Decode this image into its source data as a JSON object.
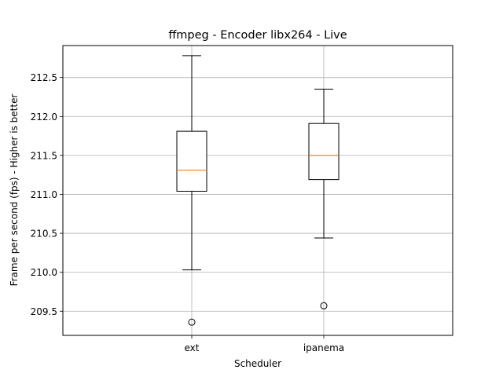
{
  "chart_data": {
    "type": "boxplot",
    "title": "ffmpeg - Encoder libx264 - Live",
    "xlabel": "Scheduler",
    "ylabel": "Frame per second (fps) - Higher is better",
    "categories": [
      "ext",
      "ipanema"
    ],
    "boxes": [
      {
        "label": "ext",
        "whislo": 210.03,
        "q1": 211.04,
        "med": 211.31,
        "q3": 211.81,
        "whishi": 212.78,
        "fliers": [
          209.36
        ]
      },
      {
        "label": "ipanema",
        "whislo": 210.44,
        "q1": 211.19,
        "med": 211.5,
        "q3": 211.91,
        "whishi": 212.35,
        "fliers": [
          209.57
        ]
      }
    ],
    "ylim": [
      209.19,
      212.91
    ],
    "yticks": [
      209.5,
      210.0,
      210.5,
      211.0,
      211.5,
      212.0,
      212.5
    ],
    "grid": true,
    "colors": {
      "box": "#000000",
      "median": "#ff7f0e",
      "grid": "#b0b0b0"
    }
  }
}
